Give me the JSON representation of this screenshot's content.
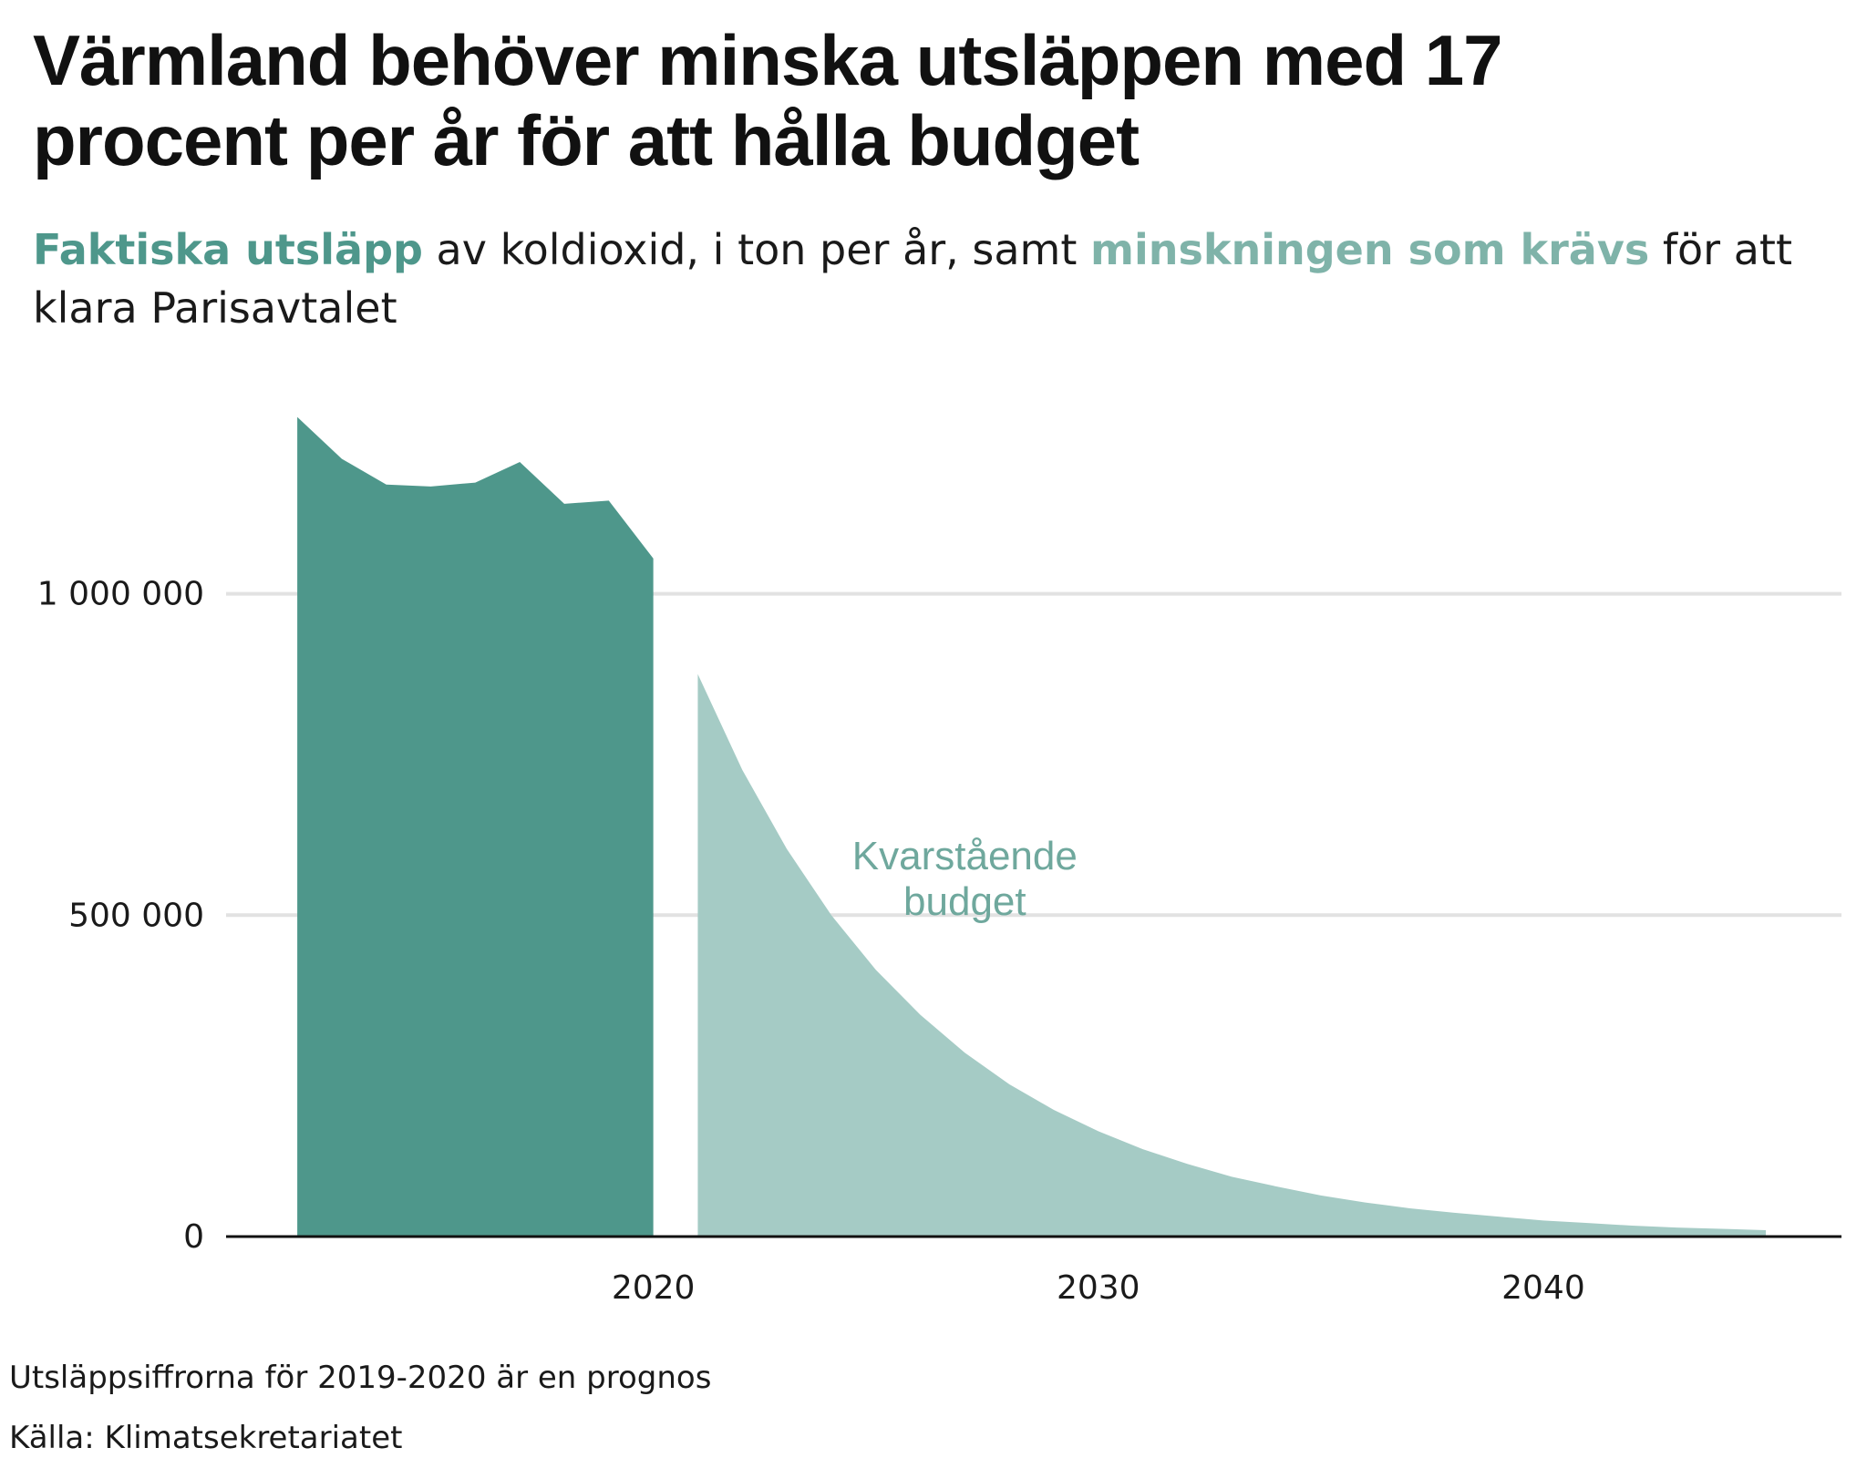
{
  "title": "Värmland behöver minska utsläppen med 17 procent per år för att hålla budget",
  "subtitle": {
    "part1": "Faktiska utsläpp",
    "part2": " av koldioxid, i ton per år, samt ",
    "part3": "minskningen som krävs",
    "part4": " för att klara Parisavtalet"
  },
  "footnote": "Utsläppsiffrorna för 2019-2020 är en prognos",
  "source": "Källa: Klimatsekretariatet",
  "chart_data": {
    "type": "area",
    "xlim": [
      2010.4,
      2046.7
    ],
    "ylim": [
      0,
      1300000
    ],
    "grid": true,
    "x_ticks": [
      2020,
      2030,
      2040
    ],
    "x_tick_labels": [
      "2020",
      "2030",
      "2040"
    ],
    "y_ticks": [
      0,
      500000,
      1000000
    ],
    "y_tick_labels": [
      "0",
      "500 000",
      "1 000 000"
    ],
    "annotation": "Kvarstående budget",
    "annotation_lines": [
      "Kvarstående",
      "budget"
    ],
    "annotation_at": [
      2027,
      540000
    ],
    "colors": {
      "actual": "#4e978b",
      "required": "#a5cbc5",
      "annotation": "#6fa89d"
    },
    "series": [
      {
        "key": "actual",
        "x": [
          2012,
          2013,
          2014,
          2015,
          2016,
          2017,
          2018,
          2019,
          2020
        ],
        "values": [
          1275000,
          1210000,
          1170000,
          1167000,
          1173000,
          1205000,
          1140000,
          1145000,
          1055000
        ]
      },
      {
        "key": "required",
        "x": [
          2021,
          2022,
          2023,
          2024,
          2025,
          2026,
          2027,
          2028,
          2029,
          2030,
          2031,
          2032,
          2033,
          2034,
          2035,
          2036,
          2037,
          2038,
          2039,
          2040,
          2041,
          2042,
          2043,
          2044,
          2045
        ],
        "values": [
          875000,
          726000,
          603000,
          500000,
          415000,
          345000,
          286000,
          237000,
          197000,
          164000,
          136000,
          113000,
          93000,
          78000,
          64000,
          53000,
          44000,
          37000,
          31000,
          25000,
          21000,
          17000,
          14000,
          12000,
          10000
        ]
      }
    ]
  }
}
